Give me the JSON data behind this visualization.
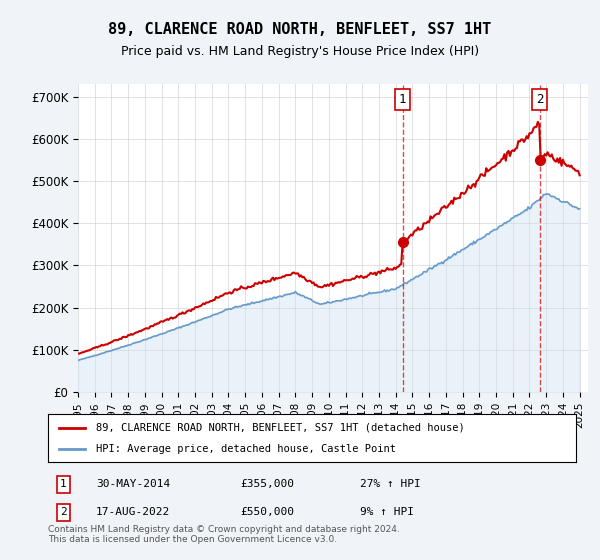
{
  "title": "89, CLARENCE ROAD NORTH, BENFLEET, SS7 1HT",
  "subtitle": "Price paid vs. HM Land Registry's House Price Index (HPI)",
  "ylabel": "",
  "xlim_start": 1995.0,
  "xlim_end": 2025.5,
  "ylim": [
    0,
    730000
  ],
  "yticks": [
    0,
    100000,
    200000,
    300000,
    400000,
    500000,
    600000,
    700000
  ],
  "ytick_labels": [
    "£0",
    "£100K",
    "£200K",
    "£300K",
    "£400K",
    "£500K",
    "£600K",
    "£700K"
  ],
  "red_line_color": "#cc0000",
  "blue_line_color": "#6699cc",
  "blue_fill_color": "#cce0f0",
  "marker1_date": 2014.41,
  "marker1_value": 355000,
  "marker1_label": "1",
  "marker2_date": 2022.62,
  "marker2_value": 550000,
  "marker2_label": "2",
  "legend_line1": "89, CLARENCE ROAD NORTH, BENFLEET, SS7 1HT (detached house)",
  "legend_line2": "HPI: Average price, detached house, Castle Point",
  "annotation1": "1    30-MAY-2014        £355,000        27% ↑ HPI",
  "annotation2": "2    17-AUG-2022        £550,000        9% ↑ HPI",
  "footnote": "Contains HM Land Registry data © Crown copyright and database right 2024.\nThis data is licensed under the Open Government Licence v3.0.",
  "background_color": "#f0f4f8",
  "plot_bg_color": "#ffffff",
  "grid_color": "#cccccc"
}
